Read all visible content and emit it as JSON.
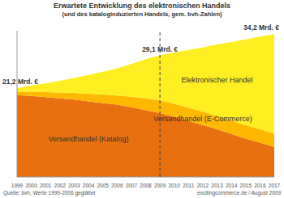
{
  "chart_data": {
    "type": "area",
    "title": "Erwartete Entwicklung des elektronischen Handels",
    "subtitle": "(und des kataloginduzierten Handels, gem. bvh-Zahlen)",
    "stacked": true,
    "tick_labels": "x",
    "x": [
      1999,
      2000,
      2001,
      2002,
      2003,
      2004,
      2005,
      2006,
      2007,
      2008,
      2009,
      2010,
      2011,
      2012,
      2013,
      2014,
      2015,
      2016,
      2017
    ],
    "xlim": [
      1999,
      2017
    ],
    "xticks": [
      1999,
      2000,
      2001,
      2002,
      2003,
      2004,
      2005,
      2006,
      2007,
      2008,
      2009,
      2010,
      2011,
      2012,
      2013,
      2014,
      2015,
      2016,
      2017
    ],
    "ylim": [
      0,
      35
    ],
    "series": [
      {
        "name": "Versandhandel (Katalog)",
        "color": "#e8700f",
        "values": [
          19.6,
          19.4,
          19.1,
          18.8,
          18.5,
          18.1,
          17.7,
          17.3,
          16.7,
          16.0,
          15.3,
          14.4,
          13.4,
          12.4,
          11.4,
          10.3,
          9.2,
          8.2,
          7.2
        ]
      },
      {
        "name": "Versandhandel (E-Commerce)",
        "color": "#ffb800",
        "values": [
          0.8,
          1.0,
          1.2,
          1.4,
          1.6,
          1.8,
          2.0,
          2.2,
          2.5,
          2.8,
          3.0,
          3.1,
          3.2,
          3.2,
          3.2,
          3.2,
          3.2,
          3.2,
          3.2
        ]
      },
      {
        "name": "Elektronischer Handel",
        "color": "#ffee22",
        "values": [
          0.8,
          1.5,
          2.1,
          2.8,
          3.6,
          4.5,
          5.5,
          6.5,
          7.8,
          9.4,
          10.8,
          12.3,
          13.8,
          15.4,
          17.1,
          18.8,
          20.5,
          22.2,
          23.8
        ]
      }
    ],
    "annotations": [
      {
        "text": "21,2 Mrd. €",
        "x": 1999,
        "y": 21.2
      },
      {
        "text": "29,1 Mrd. €",
        "x": 2009,
        "y": 29.1
      },
      {
        "text": "34,2 Mrd. €",
        "x": 2017,
        "y": 34.2
      }
    ],
    "reference_lines": [
      {
        "x": 2009,
        "line_style": "dashed"
      }
    ],
    "footnotes": [
      "Quelle: bvh, Werte 1999-2006 geglättet",
      "excitingcommerce.de / August 2009"
    ]
  }
}
